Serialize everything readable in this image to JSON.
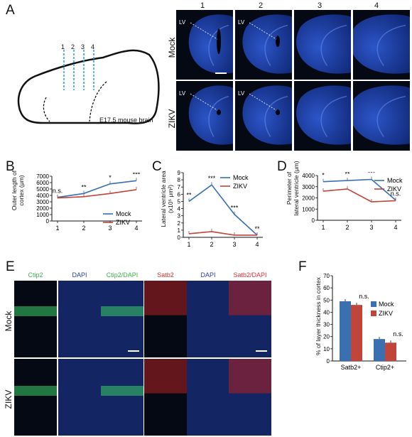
{
  "panels": {
    "A": "A",
    "B": "B",
    "C": "C",
    "D": "D",
    "E": "E",
    "F": "F"
  },
  "brain_sketch": {
    "levels": [
      "1",
      "2",
      "3",
      "4"
    ],
    "caption": "E17.5 mouse brain"
  },
  "microscopy_A": {
    "columns": [
      "1",
      "2",
      "3",
      "4"
    ],
    "rows": [
      "Mock",
      "ZIKV"
    ],
    "lv_label": "LV"
  },
  "charts": {
    "B": {
      "ylabel_line1": "Outer length of",
      "ylabel_line2": "cortex (μm)",
      "legend": [
        "Mock",
        "ZIKV"
      ],
      "signif": [
        "n.s.",
        "**",
        "*",
        "***"
      ]
    },
    "C": {
      "ylabel_line1": "Lateral ventricle area",
      "ylabel_line2": "(x10⁵ μm²)",
      "legend": [
        "Mock",
        "ZIKV"
      ],
      "signif": [
        "**",
        "***",
        "***",
        "**"
      ]
    },
    "D": {
      "ylabel_line1": "Perimeter of",
      "ylabel_line2": "lateral ventricle (μm)",
      "legend": [
        "Mock",
        "ZIKV"
      ],
      "signif": [
        "*",
        "**",
        "***",
        "n.s."
      ]
    },
    "F": {
      "ylabel": "% of layer thickness in cortex",
      "legend": [
        "Mock",
        "ZIKV"
      ],
      "signif": [
        "n.s.",
        "n.s."
      ]
    }
  },
  "microscopy_E": {
    "headers": [
      "Ctip2",
      "DAPI",
      "Ctip2/DAPI",
      "Satb2",
      "DAPI",
      "Satb2/DAPI"
    ],
    "rows": [
      "Mock",
      "ZIKV"
    ]
  },
  "chart_data": [
    {
      "type": "line",
      "categories": [
        "1",
        "2",
        "3",
        "4"
      ],
      "ylim": [
        0,
        7000
      ],
      "yticks": [
        0,
        1000,
        2000,
        3000,
        4000,
        5000,
        6000,
        7000
      ],
      "series": [
        {
          "name": "Mock",
          "values": [
            3700,
            4300,
            5800,
            6300
          ]
        },
        {
          "name": "ZIKV",
          "values": [
            3600,
            3800,
            4300,
            4900
          ]
        }
      ],
      "ylabel": "Outer length of cortex (μm)"
    },
    {
      "type": "line",
      "categories": [
        "1",
        "2",
        "3",
        "4"
      ],
      "ylim": [
        0,
        9
      ],
      "yticks": [
        0,
        1,
        2,
        3,
        4,
        5,
        6,
        7,
        8,
        9
      ],
      "series": [
        {
          "name": "Mock",
          "values": [
            5.0,
            7.3,
            3.2,
            0.3
          ]
        },
        {
          "name": "ZIKV",
          "values": [
            0.5,
            0.8,
            0.3,
            0.3
          ]
        }
      ],
      "ylabel": "Lateral ventricle area (x10⁵ μm²)"
    },
    {
      "type": "line",
      "categories": [
        "1",
        "2",
        "3",
        "4"
      ],
      "ylim": [
        0,
        4000
      ],
      "yticks": [
        0,
        1000,
        2000,
        3000,
        4000
      ],
      "series": [
        {
          "name": "Mock",
          "values": [
            3450,
            3550,
            3650,
            1800
          ]
        },
        {
          "name": "ZIKV",
          "values": [
            2600,
            2800,
            1650,
            1750
          ]
        }
      ],
      "ylabel": "Perimeter of lateral ventricle (μm)"
    },
    {
      "type": "bar",
      "categories": [
        "Satb2+",
        "Ctip2+"
      ],
      "ylim": [
        0,
        70
      ],
      "yticks": [
        0,
        10,
        20,
        30,
        40,
        50,
        60,
        70
      ],
      "series": [
        {
          "name": "Mock",
          "values": [
            49,
            18
          ]
        },
        {
          "name": "ZIKV",
          "values": [
            46,
            15
          ]
        }
      ],
      "ylabel": "% of layer thickness in cortex"
    }
  ],
  "colors": {
    "mock": "#3a6fb0",
    "zikv": "#c0453b",
    "micro_bg": "#050914",
    "tissue": "#1a3a9a"
  }
}
